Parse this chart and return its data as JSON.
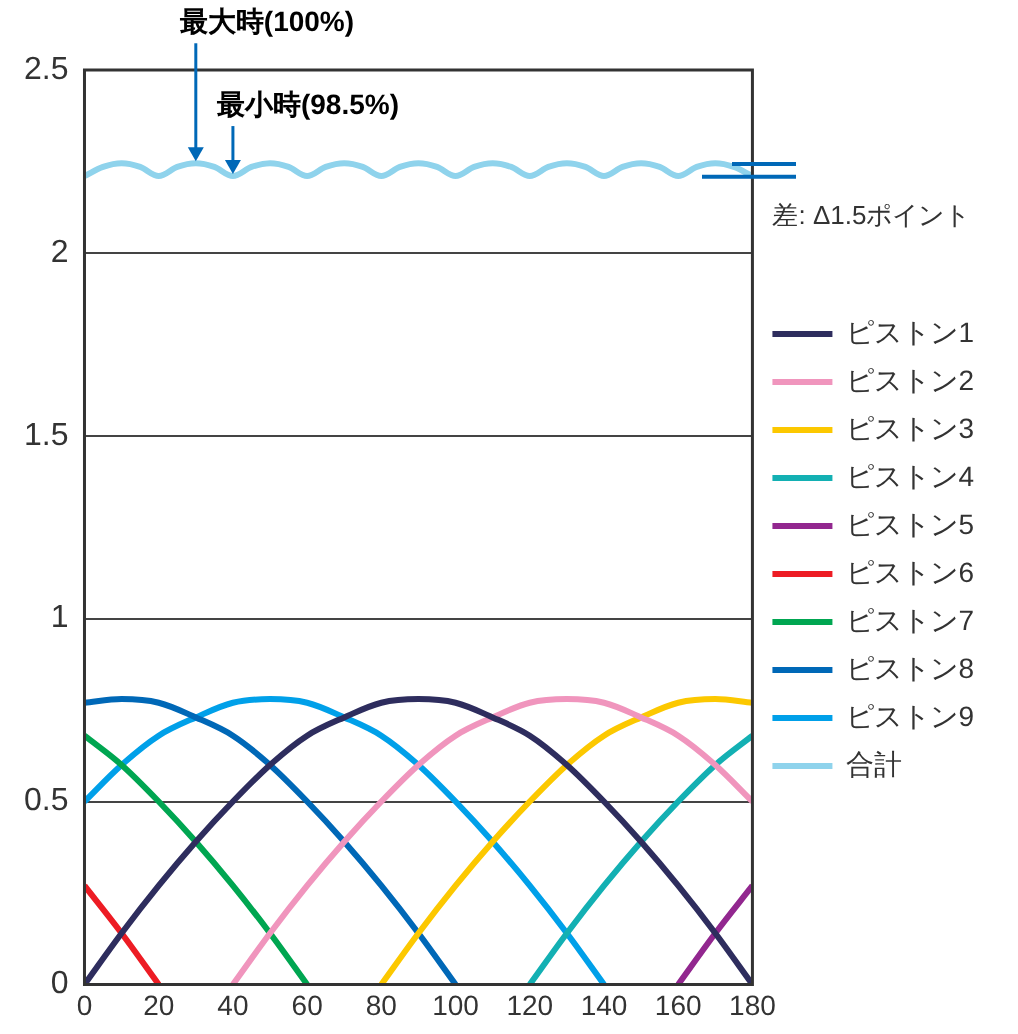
{
  "chart_data": {
    "type": "line",
    "xlim": [
      0,
      180
    ],
    "xticks": [
      0,
      20,
      40,
      60,
      80,
      100,
      120,
      140,
      160,
      180
    ],
    "ylim": [
      0,
      2.5
    ],
    "yticks": [
      0,
      0.5,
      1,
      1.5,
      2,
      2.5
    ],
    "grid": "y",
    "legend": "right",
    "marker": "none",
    "line_style": "solid",
    "series": [
      {
        "name": "ピストン1",
        "color": "#2e2d5e",
        "x": [
          0,
          10,
          20,
          30,
          40,
          50,
          60,
          70,
          80,
          90,
          100,
          110,
          120,
          130,
          140,
          150,
          160,
          170,
          180
        ],
        "values": [
          0,
          0.14,
          0.27,
          0.39,
          0.5,
          0.6,
          0.68,
          0.73,
          0.77,
          0.78,
          0.77,
          0.73,
          0.68,
          0.6,
          0.5,
          0.39,
          0.27,
          0.14,
          0
        ]
      },
      {
        "name": "ピストン2",
        "color": "#f095bd",
        "x": [
          40,
          50,
          60,
          70,
          80,
          90,
          100,
          110,
          120,
          130,
          140,
          150,
          160,
          170,
          180
        ],
        "values": [
          0,
          0.14,
          0.27,
          0.39,
          0.5,
          0.6,
          0.68,
          0.73,
          0.77,
          0.78,
          0.77,
          0.73,
          0.68,
          0.6,
          0.5
        ]
      },
      {
        "name": "ピストン3",
        "color": "#fcc800",
        "x": [
          80,
          90,
          100,
          110,
          120,
          130,
          140,
          150,
          160,
          170,
          180
        ],
        "values": [
          0,
          0.14,
          0.27,
          0.39,
          0.5,
          0.6,
          0.68,
          0.73,
          0.77,
          0.78,
          0.77
        ]
      },
      {
        "name": "ピストン4",
        "color": "#13b0b3",
        "x": [
          120,
          130,
          140,
          150,
          160,
          170,
          180
        ],
        "values": [
          0,
          0.14,
          0.27,
          0.39,
          0.5,
          0.6,
          0.68
        ]
      },
      {
        "name": "ピストン5",
        "color": "#92278f",
        "x": [
          160,
          170,
          180
        ],
        "values": [
          0,
          0.14,
          0.27
        ]
      },
      {
        "name": "ピストン6",
        "color": "#ed1c24",
        "x": [
          0,
          10,
          20
        ],
        "values": [
          0.27,
          0.14,
          0
        ]
      },
      {
        "name": "ピストン7",
        "color": "#00a651",
        "x": [
          0,
          10,
          20,
          30,
          40,
          50,
          60
        ],
        "values": [
          0.68,
          0.6,
          0.5,
          0.39,
          0.27,
          0.14,
          0
        ]
      },
      {
        "name": "ピストン8",
        "color": "#0068b7",
        "x": [
          0,
          10,
          20,
          30,
          40,
          50,
          60,
          70,
          80,
          90,
          100
        ],
        "values": [
          0.77,
          0.78,
          0.77,
          0.73,
          0.68,
          0.6,
          0.5,
          0.39,
          0.27,
          0.14,
          0
        ]
      },
      {
        "name": "ピストン9",
        "color": "#00a0e9",
        "x": [
          0,
          10,
          20,
          30,
          40,
          50,
          60,
          70,
          80,
          90,
          100,
          110,
          120,
          130,
          140
        ],
        "values": [
          0.5,
          0.6,
          0.68,
          0.73,
          0.77,
          0.78,
          0.77,
          0.73,
          0.68,
          0.6,
          0.5,
          0.39,
          0.27,
          0.14,
          0
        ]
      },
      {
        "name": "合計",
        "color": "#8fd3ec",
        "x": [
          0,
          5,
          10,
          15,
          20,
          25,
          30,
          35,
          40,
          45,
          50,
          55,
          60,
          65,
          70,
          75,
          80,
          85,
          90,
          95,
          100,
          105,
          110,
          115,
          120,
          125,
          130,
          135,
          140,
          145,
          150,
          155,
          160,
          165,
          170,
          175,
          180
        ],
        "values": [
          2.21,
          2.235,
          2.245,
          2.235,
          2.21,
          2.235,
          2.245,
          2.235,
          2.21,
          2.235,
          2.245,
          2.235,
          2.21,
          2.235,
          2.245,
          2.235,
          2.21,
          2.235,
          2.245,
          2.235,
          2.21,
          2.235,
          2.245,
          2.235,
          2.21,
          2.235,
          2.245,
          2.235,
          2.21,
          2.235,
          2.245,
          2.235,
          2.21,
          2.235,
          2.245,
          2.235,
          2.21
        ]
      }
    ],
    "annotations": [
      {
        "text": "最大時(100%)",
        "x": 30,
        "y": 2.245
      },
      {
        "text": "最小時(98.5%)",
        "x": 40,
        "y": 2.21
      },
      {
        "text": "差: Δ1.5ポイント",
        "x": 180,
        "y": 2.21
      }
    ]
  }
}
